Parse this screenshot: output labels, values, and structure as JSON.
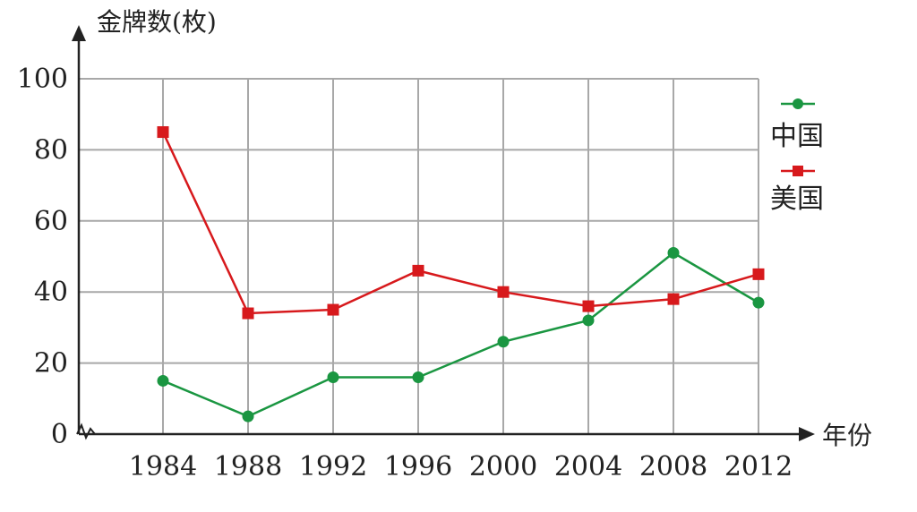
{
  "chart_data": {
    "type": "line",
    "title": "",
    "ylabel": "金牌数(枚)",
    "xlabel": "年份",
    "categories": [
      "1984",
      "1988",
      "1992",
      "1996",
      "2000",
      "2004",
      "2008",
      "2012"
    ],
    "y_ticks": [
      "0",
      "20",
      "40",
      "60",
      "80",
      "100"
    ],
    "ylim": [
      0,
      100
    ],
    "grid": true,
    "legend_position": "right",
    "series": [
      {
        "name": "中国",
        "color": "#1a9641",
        "marker": "circle",
        "values": [
          15,
          5,
          16,
          16,
          26,
          32,
          51,
          37
        ]
      },
      {
        "name": "美国",
        "color": "#d7191c",
        "marker": "square",
        "values": [
          85,
          34,
          35,
          46,
          40,
          36,
          38,
          45
        ]
      }
    ]
  }
}
